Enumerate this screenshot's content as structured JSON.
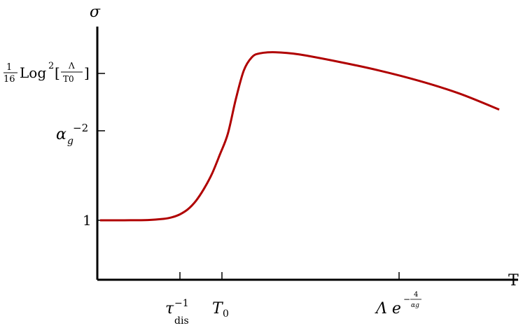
{
  "chart_data": {
    "type": "line",
    "title": "",
    "xlabel": "T",
    "ylabel": "σ",
    "grid": false,
    "legend": "none",
    "x_ticks": [
      {
        "name": "tau-dis-inverse",
        "pos": 1.0,
        "text": "τ",
        "sub": "dis",
        "sup": "−1"
      },
      {
        "name": "T0",
        "pos": 1.5,
        "text": "T",
        "sub": "0"
      },
      {
        "name": "lambda-exp",
        "pos": 4.6,
        "text": "Λ e",
        "sup_num": "4",
        "sup_den": "αg"
      }
    ],
    "y_ticks": [
      {
        "name": "one",
        "pos": 1,
        "text": "1"
      },
      {
        "name": "alpha-g-minus2",
        "pos": 4.0,
        "text": "α",
        "sub": "g",
        "sup": "−2"
      },
      {
        "name": "log-squared",
        "pos": 5.0,
        "frac_num": "1",
        "frac_den": "16",
        "text": "Log",
        "sup": "2",
        "arg_num": "Λ",
        "arg_den": "T0"
      }
    ],
    "xlim": [
      0,
      5.0
    ],
    "ylim": [
      0,
      5.5
    ],
    "series": [
      {
        "color": "#b00000",
        "x": [
          0.0,
          0.3,
          0.6,
          0.8,
          0.9,
          1.0,
          1.1,
          1.2,
          1.3,
          1.4,
          1.5,
          1.6,
          1.7,
          1.8,
          1.9,
          2.0,
          2.2,
          2.5,
          3.0,
          3.5,
          4.0,
          4.5,
          5.0
        ],
        "y": [
          1.0,
          1.0,
          1.01,
          1.05,
          1.1,
          1.2,
          1.37,
          1.65,
          2.05,
          2.55,
          3.2,
          3.9,
          4.55,
          5.05,
          5.28,
          5.35,
          5.37,
          5.33,
          5.2,
          5.05,
          4.87,
          4.65,
          4.37
        ]
      }
    ]
  },
  "colors": {
    "axis": "#000000",
    "curve": "#b00000"
  }
}
